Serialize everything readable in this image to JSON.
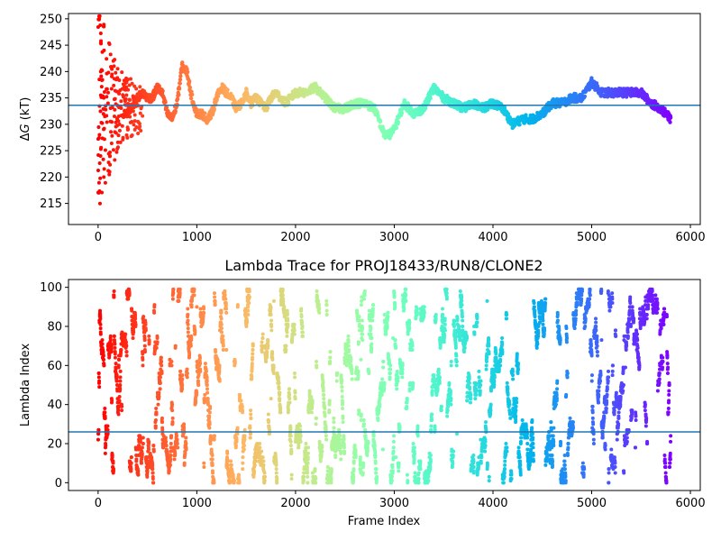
{
  "chart_data": [
    {
      "type": "scatter",
      "title": "",
      "xlabel": "",
      "ylabel_main": "ΔG",
      "ylabel_italic": "G",
      "ylabel_delta": "Δ",
      "ylabel_unit": " (kT)",
      "xlim": [
        -300,
        6100
      ],
      "ylim": [
        211,
        251
      ],
      "xticks": [
        0,
        1000,
        2000,
        3000,
        4000,
        5000,
        6000
      ],
      "yticks": [
        215,
        220,
        225,
        230,
        235,
        240,
        245,
        250
      ],
      "hline": 233.6,
      "hline_color": "#1f77b4",
      "colormap": "rainbow (red at frame 0 → violet at frame 5800)",
      "trace_anchors": {
        "x": [
          250,
          300,
          350,
          400,
          450,
          500,
          550,
          600,
          650,
          700,
          750,
          800,
          850,
          900,
          950,
          1000,
          1050,
          1100,
          1150,
          1200,
          1250,
          1300,
          1350,
          1400,
          1450,
          1500,
          1550,
          1600,
          1650,
          1700,
          1750,
          1800,
          1850,
          1900,
          1950,
          2000,
          2100,
          2200,
          2300,
          2400,
          2500,
          2600,
          2700,
          2800,
          2900,
          2950,
          3000,
          3100,
          3200,
          3300,
          3400,
          3500,
          3600,
          3700,
          3800,
          3900,
          4000,
          4100,
          4200,
          4300,
          4400,
          4500,
          4600,
          4700,
          4800,
          4900,
          5000,
          5100,
          5200,
          5300,
          5400,
          5500,
          5600,
          5700,
          5800
        ],
        "y": [
          232,
          232,
          234,
          235,
          236,
          235,
          235,
          237,
          236,
          232,
          231,
          234,
          241,
          240,
          235,
          232,
          232,
          231,
          232,
          235,
          237,
          236,
          235,
          233,
          234,
          236,
          234,
          235,
          234,
          233,
          235,
          236,
          235,
          234,
          235,
          236,
          236,
          237,
          235,
          233,
          233,
          234,
          234,
          233,
          228,
          228,
          229,
          234,
          232,
          233,
          237,
          235,
          234,
          233,
          234,
          233,
          234,
          233,
          230,
          231,
          231,
          232,
          234,
          234,
          235,
          235,
          238,
          236,
          236,
          236,
          236,
          236,
          234,
          233,
          231
        ]
      },
      "early_scatter_note": "frames 0-400 show widely dispersed points between 215 and 246"
    },
    {
      "type": "scatter",
      "title": "Lambda Trace for PROJ18433/RUN8/CLONE2",
      "xlabel": "Frame Index",
      "ylabel": "Lambda Index",
      "xlim": [
        -300,
        6100
      ],
      "ylim": [
        -4,
        104
      ],
      "xticks": [
        0,
        1000,
        2000,
        3000,
        4000,
        5000,
        6000
      ],
      "yticks": [
        0,
        20,
        40,
        60,
        80,
        100
      ],
      "hline": 26,
      "hline_color": "#1f77b4",
      "colormap": "rainbow (red at frame 0 → violet at frame 5800)",
      "point_count_approx": 6000,
      "lambda_range": [
        0,
        99
      ]
    }
  ]
}
